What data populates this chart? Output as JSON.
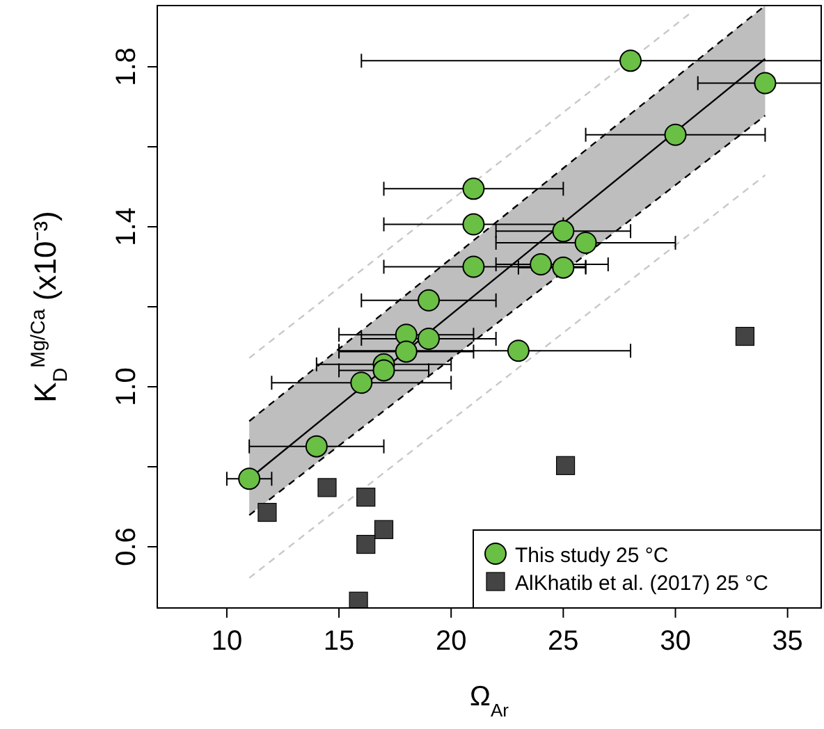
{
  "chart_data": {
    "type": "scatter",
    "xlabel": "Ω$_{Ar}$",
    "ylabel": "K$_{D}$$^{Mg/Ca}$ (x10⁻³)",
    "xlim": [
      6.9,
      36.5
    ],
    "ylim": [
      0.447,
      1.953
    ],
    "xticks": [
      10,
      15,
      20,
      25,
      30,
      35
    ],
    "yticks": [
      0.6,
      {
        "value": 0.8,
        "label": null
      },
      {
        "value": 1.0,
        "label": "1.0"
      },
      {
        "value": 1.2,
        "label": null
      },
      1.4,
      {
        "value": 1.6,
        "label": null
      },
      1.8
    ],
    "grid": false,
    "legend": "bottom right",
    "series": [
      {
        "type": "line",
        "color": "#000000",
        "line_style": "solid",
        "marker": "none",
        "x": [
          11,
          34
        ],
        "values": [
          0.77,
          1.82
        ],
        "lower": [
          0.679,
          1.678
        ],
        "upper": [
          0.914,
          1.953
        ]
      },
      {
        "type": "line",
        "color": "#000000",
        "line_style": "dashed",
        "marker": "none",
        "x": [
          11,
          34
        ],
        "values": [
          0.679,
          1.678
        ]
      },
      {
        "type": "line",
        "color": "#000000",
        "line_style": "dashed",
        "marker": "none",
        "x": [
          11,
          34
        ],
        "values": [
          0.914,
          1.953
        ]
      },
      {
        "type": "line",
        "color": "#c8c8c8",
        "line_style": "dashed",
        "marker": "none",
        "x": [
          11,
          34
        ],
        "values": [
          0.522,
          1.529
        ]
      },
      {
        "type": "line",
        "color": "#c8c8c8",
        "line_style": "dashed",
        "marker": "none",
        "x": [
          11,
          30.8
        ],
        "values": [
          1.072,
          1.94
        ]
      },
      {
        "name": "This study 25 °C",
        "color": "#6abf45",
        "marker": "circle",
        "x": [
          21,
          21,
          21,
          24,
          25,
          19,
          28,
          34,
          30,
          25,
          26,
          23,
          18,
          19,
          18,
          17,
          17,
          16,
          14,
          11
        ],
        "values": [
          1.495,
          1.406,
          1.3,
          1.306,
          1.298,
          1.216,
          1.815,
          1.759,
          1.63,
          1.389,
          1.36,
          1.09,
          1.13,
          1.12,
          1.088,
          1.056,
          1.041,
          1.01,
          0.851,
          0.77
        ],
        "xerrors": [
          [
            17,
            25
          ],
          [
            17,
            25
          ],
          [
            17,
            26
          ],
          [
            22,
            27
          ],
          [
            23,
            26
          ],
          [
            16,
            22
          ],
          [
            16,
            36.5
          ],
          [
            31,
            36.5
          ],
          [
            26,
            34
          ],
          [
            22,
            28
          ],
          [
            22,
            30
          ],
          [
            15,
            28
          ],
          [
            15,
            21
          ],
          [
            16,
            22
          ],
          [
            15,
            21
          ],
          [
            14,
            20
          ],
          [
            15,
            19
          ],
          [
            12,
            20
          ],
          [
            11,
            17
          ],
          [
            10,
            12
          ]
        ]
      },
      {
        "name": "AlKhatib et al. (2017) 25 °C",
        "color": "#444444",
        "marker": "square",
        "x": [
          11.8,
          14.47,
          16.2,
          17.0,
          16.2,
          15.87,
          33.1,
          25.1
        ],
        "values": [
          0.686,
          0.748,
          0.724,
          0.643,
          0.606,
          0.464,
          1.126,
          0.803
        ]
      }
    ]
  }
}
